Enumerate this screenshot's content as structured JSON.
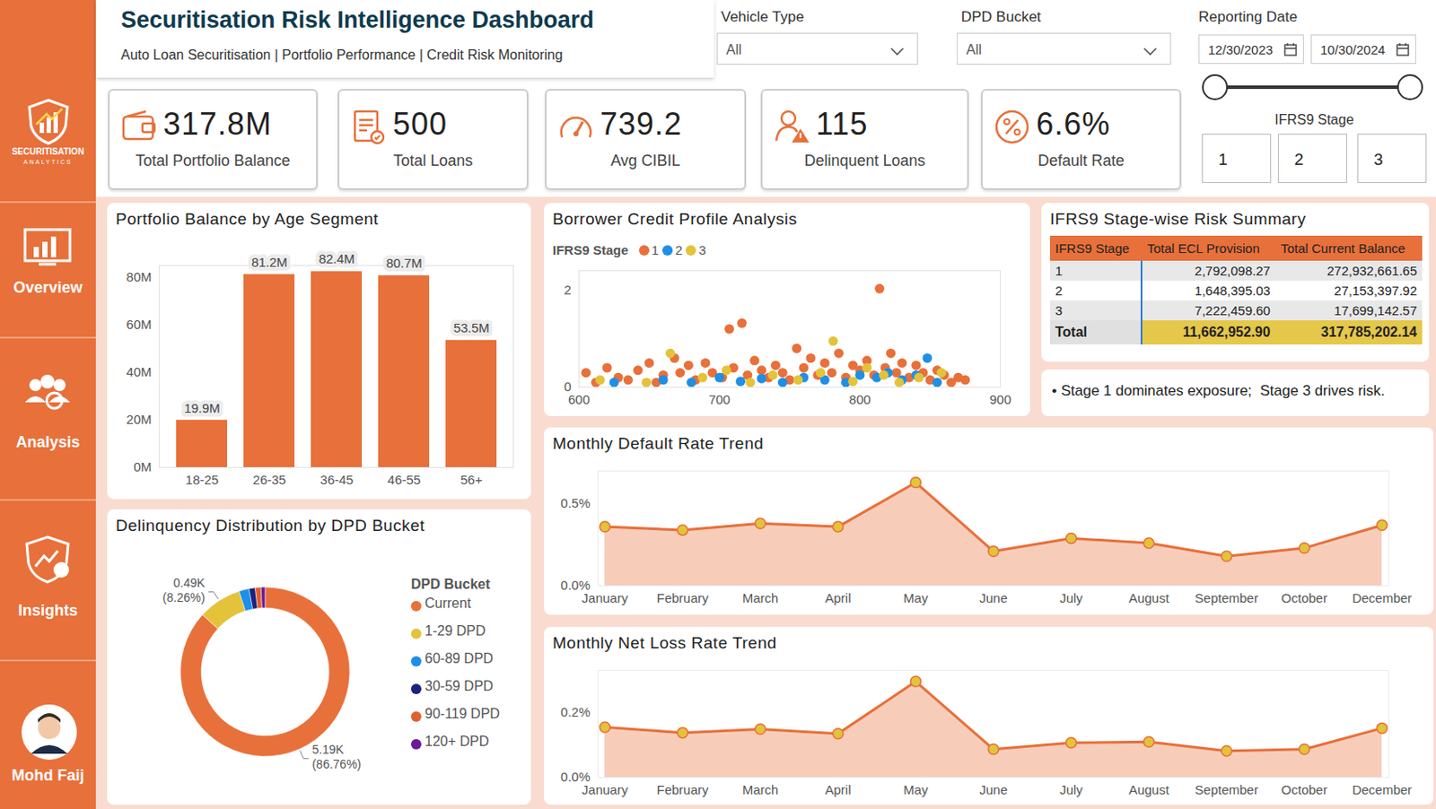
{
  "sidebar": {
    "logo": [
      "SECURITISATION",
      "ANALYTICS"
    ],
    "nav": [
      "Overview",
      "Analysis",
      "Insights"
    ],
    "user": "Mohd Faij"
  },
  "header": {
    "title": "Securitisation Risk Intelligence Dashboard",
    "subtitle": "Auto Loan Securitisation | Portfolio Performance | Credit Risk Monitoring"
  },
  "filters": [
    {
      "label": "Vehicle Type",
      "value": "All"
    },
    {
      "label": "DPD Bucket",
      "value": "All"
    }
  ],
  "date_filter": {
    "label": "Reporting Date",
    "from": "12/30/2023",
    "to": "10/30/2024"
  },
  "stage_filter": {
    "label": "IFRS9 Stage",
    "options": [
      "1",
      "2",
      "3"
    ]
  },
  "kpis": [
    {
      "value": "317.8M",
      "label": "Total Portfolio Balance"
    },
    {
      "value": "500",
      "label": "Total Loans"
    },
    {
      "value": "739.2",
      "label": "Avg CIBIL"
    },
    {
      "value": "115",
      "label": "Delinquent Loans"
    },
    {
      "value": "6.6%",
      "label": "Default Rate"
    }
  ],
  "chart_data": [
    {
      "type": "bar",
      "title": "Portfolio Balance by Age Segment",
      "categories": [
        "18-25",
        "26-35",
        "36-45",
        "46-55",
        "56+"
      ],
      "values": [
        19900000,
        81200000,
        82400000,
        80700000,
        53500000
      ],
      "value_labels": [
        "19.9M",
        "81.2M",
        "82.4M",
        "80.7M",
        "53.5M"
      ],
      "data_labels": true,
      "color": "#E8703A",
      "ylim": [
        0,
        85000000
      ],
      "yticks": [
        {
          "value": 0,
          "label": "0M"
        },
        {
          "value": 20000000,
          "label": "20M"
        },
        {
          "value": 40000000,
          "label": "40M"
        },
        {
          "value": 60000000,
          "label": "60M"
        },
        {
          "value": 80000000,
          "label": "80M"
        }
      ],
      "grid": false
    },
    {
      "type": "scatter",
      "title": "Borrower Credit Profile Analysis",
      "legend_title": "IFRS9 Stage",
      "legend": "top-left",
      "marker": "circle",
      "series": [
        {
          "name": "1",
          "color": "#E8703A",
          "x": [
            605,
            612,
            620,
            628,
            635,
            642,
            650,
            655,
            660,
            668,
            672,
            678,
            683,
            690,
            695,
            702,
            707,
            710,
            716,
            720,
            725,
            730,
            735,
            740,
            745,
            750,
            755,
            760,
            765,
            770,
            775,
            780,
            785,
            790,
            795,
            800,
            805,
            810,
            814,
            818,
            822,
            826,
            830,
            835,
            840,
            845,
            850,
            855,
            860,
            865,
            870,
            875
          ],
          "values": [
            0.3,
            0.1,
            0.4,
            0.2,
            0.15,
            0.35,
            0.5,
            0.1,
            0.25,
            0.6,
            0.3,
            0.45,
            0.15,
            0.5,
            0.3,
            0.2,
            1.2,
            0.4,
            1.32,
            0.25,
            0.55,
            0.35,
            0.2,
            0.45,
            0.3,
            0.15,
            0.8,
            0.4,
            0.6,
            0.25,
            0.5,
            0.3,
            0.7,
            0.2,
            0.45,
            0.35,
            0.55,
            0.25,
            2.03,
            0.4,
            0.7,
            0.3,
            0.5,
            0.2,
            0.45,
            0.3,
            0.15,
            0.35,
            0.25,
            0.1,
            0.2,
            0.15
          ]
        },
        {
          "name": "2",
          "color": "#1E8FE6",
          "x": [
            625,
            660,
            680,
            700,
            715,
            730,
            745,
            760,
            775,
            790,
            800,
            812,
            820,
            830,
            840,
            848,
            855
          ],
          "values": [
            0.1,
            0.15,
            0.1,
            0.2,
            0.12,
            0.18,
            0.1,
            0.2,
            0.15,
            0.1,
            0.25,
            0.2,
            0.3,
            0.15,
            0.25,
            0.6,
            0.1
          ]
        },
        {
          "name": "3",
          "color": "#E3C33A",
          "x": [
            615,
            648,
            665,
            688,
            705,
            722,
            738,
            756,
            772,
            781,
            795,
            805,
            817,
            828,
            842,
            858
          ],
          "values": [
            0.15,
            0.1,
            0.7,
            0.2,
            0.35,
            0.1,
            0.25,
            0.15,
            0.3,
            0.95,
            0.12,
            0.4,
            0.25,
            0.1,
            0.2,
            0.3
          ]
        }
      ],
      "xlim": [
        600,
        900
      ],
      "xticks": [
        600,
        700,
        800,
        900
      ],
      "ylim": [
        0,
        2.4
      ],
      "yticks": [
        0,
        2
      ],
      "grid": false
    },
    {
      "type": "pie",
      "title": "Delinquency Distribution by DPD Bucket",
      "legend_title": "DPD Bucket",
      "legend": "right",
      "categories": [
        "Current",
        "1-29 DPD",
        "60-89 DPD",
        "30-59 DPD",
        "90-119 DPD",
        "120+ DPD"
      ],
      "values": [
        5187,
        494,
        114,
        72,
        66,
        46
      ],
      "value_labels": [
        "5.19K (86.76%)",
        "0.49K (8.26%)",
        null,
        null,
        null,
        null
      ],
      "colors": [
        "#E8703A",
        "#E3C33A",
        "#1E8FE6",
        "#1A237E",
        "#E0612D",
        "#6A1B9A"
      ],
      "data_labels": true
    },
    {
      "type": "area",
      "title": "Monthly Default Rate Trend",
      "marker": "circle",
      "color": "#E8703A",
      "categories": [
        "January",
        "February",
        "March",
        "April",
        "May",
        "June",
        "July",
        "August",
        "September",
        "October",
        "December"
      ],
      "values": [
        0.36,
        0.34,
        0.38,
        0.36,
        0.63,
        0.21,
        0.29,
        0.26,
        0.18,
        0.23,
        0.37
      ],
      "ylim": [
        0,
        0.7
      ],
      "yticks": [
        {
          "value": 0,
          "label": "0.0%"
        },
        {
          "value": 0.5,
          "label": "0.5%"
        }
      ],
      "grid": false
    },
    {
      "type": "area",
      "title": "Monthly Net Loss Rate Trend",
      "marker": "circle",
      "color": "#E8703A",
      "categories": [
        "January",
        "February",
        "March",
        "April",
        "May",
        "June",
        "July",
        "August",
        "September",
        "October",
        "December"
      ],
      "values": [
        0.155,
        0.138,
        0.149,
        0.135,
        0.296,
        0.087,
        0.107,
        0.11,
        0.082,
        0.087,
        0.152
      ],
      "ylim": [
        0,
        0.33
      ],
      "yticks": [
        {
          "value": 0,
          "label": "0.0%"
        },
        {
          "value": 0.2,
          "label": "0.2%"
        }
      ],
      "grid": false
    }
  ],
  "table": {
    "title": "IFRS9 Stage-wise Risk Summary",
    "columns": [
      "IFRS9 Stage",
      "Total ECL Provision",
      "Total Current Balance"
    ],
    "rows": [
      [
        "1",
        "2,792,098.27",
        "272,932,661.65"
      ],
      [
        "2",
        "1,648,395.03",
        "27,153,397.92"
      ],
      [
        "3",
        "7,222,459.60",
        "17,699,142.57"
      ]
    ],
    "total": [
      "Total",
      "11,662,952.90",
      "317,785,202.14"
    ],
    "note": "• Stage 1 dominates exposure;  Stage 3 drives risk."
  }
}
